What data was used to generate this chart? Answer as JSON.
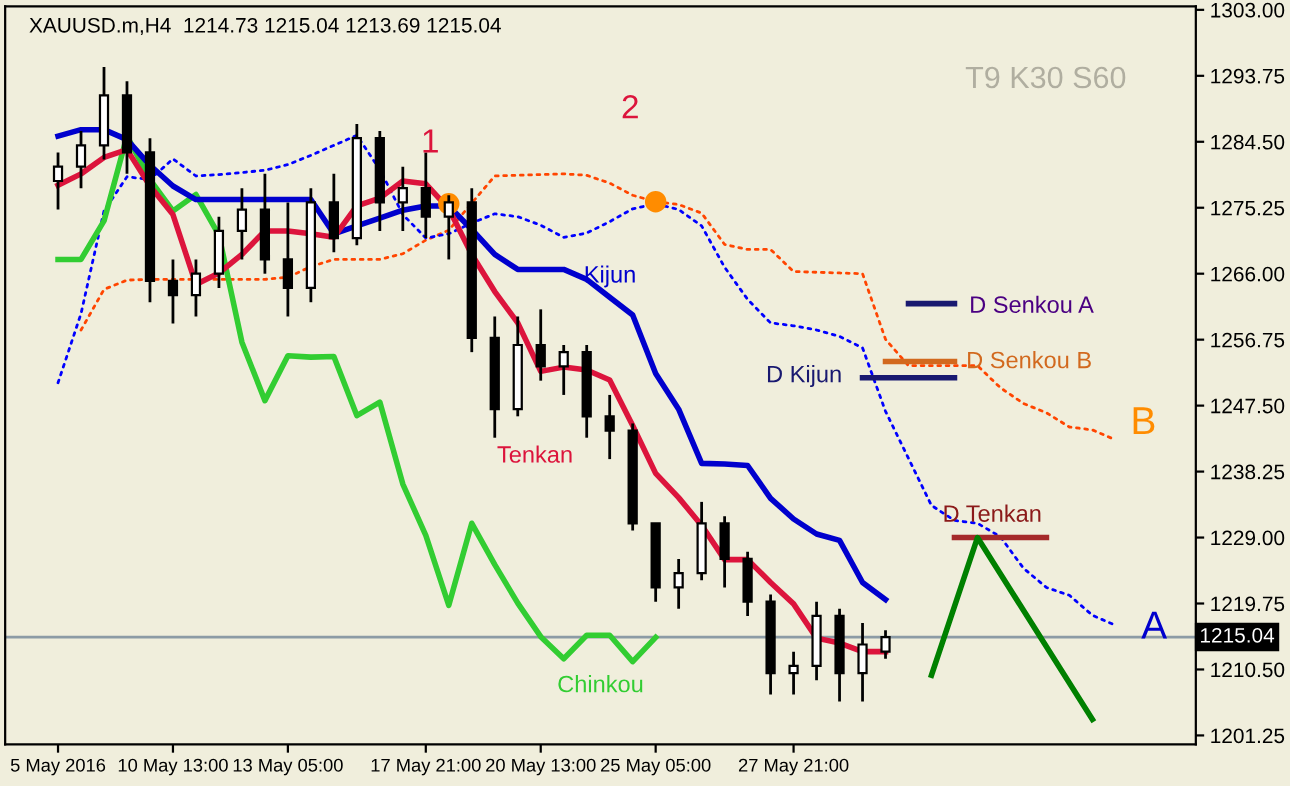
{
  "chart_data": {
    "type": "candlestick",
    "title": "XAUUSD.m,H4  1214.73 1215.04 1213.69 1215.04",
    "categories": [
      "5 May 2016",
      null,
      null,
      null,
      null,
      "10 May 13:00",
      null,
      null,
      null,
      null,
      "13 May 05:00",
      null,
      null,
      null,
      null,
      null,
      "17 May 21:00",
      null,
      null,
      null,
      null,
      "20 May 13:00",
      null,
      null,
      null,
      null,
      "25 May 05:00",
      null,
      null,
      null,
      null,
      null,
      "27 May 21:00",
      null,
      null,
      null,
      null,
      null,
      null,
      null,
      null,
      null,
      null,
      null,
      null,
      null,
      null,
      null,
      null,
      null
    ],
    "ohlc": [
      [
        1279,
        1283,
        1275,
        1281
      ],
      [
        1281,
        1286,
        1278,
        1284
      ],
      [
        1284,
        1295,
        1282,
        1291
      ],
      [
        1291,
        1293,
        1280,
        1283
      ],
      [
        1283,
        1285,
        1262,
        1265
      ],
      [
        1265,
        1268,
        1259,
        1263
      ],
      [
        1263,
        1268,
        1260,
        1266
      ],
      [
        1266,
        1274,
        1264,
        1272
      ],
      [
        1272,
        1278,
        1268,
        1275
      ],
      [
        1275,
        1280,
        1266,
        1268
      ],
      [
        1268,
        1276,
        1260,
        1264
      ],
      [
        1264,
        1278,
        1262,
        1276
      ],
      [
        1276,
        1280,
        1269,
        1271
      ],
      [
        1271,
        1287,
        1270,
        1285
      ],
      [
        1285,
        1286,
        1272,
        1276
      ],
      [
        1276,
        1281,
        1272,
        1278
      ],
      [
        1278,
        1283,
        1271,
        1274
      ],
      [
        1274,
        1277,
        1268,
        1276
      ],
      [
        1276,
        1278,
        1255,
        1257
      ],
      [
        1257,
        1260,
        1243,
        1247
      ],
      [
        1247,
        1260,
        1246,
        1256
      ],
      [
        1256,
        1261,
        1251,
        1253
      ],
      [
        1253,
        1256,
        1249,
        1255
      ],
      [
        1255,
        1256,
        1243,
        1246
      ],
      [
        1246,
        1249,
        1240,
        1244
      ],
      [
        1244,
        1245,
        1230,
        1231
      ],
      [
        1231,
        1231,
        1220,
        1222
      ],
      [
        1222,
        1226,
        1219,
        1224
      ],
      [
        1224,
        1234,
        1223,
        1231
      ],
      [
        1231,
        1232,
        1222,
        1226
      ],
      [
        1226,
        1227,
        1218,
        1220
      ],
      [
        1220,
        1221,
        1207,
        1210
      ],
      [
        1210,
        1213,
        1207,
        1211
      ],
      [
        1211,
        1220,
        1209,
        1218
      ],
      [
        1218,
        1219,
        1206,
        1210
      ],
      [
        1210,
        1217,
        1206,
        1214
      ],
      [
        1213,
        1216,
        1212,
        1215.04
      ],
      null,
      null,
      null,
      null,
      null,
      null,
      null,
      null,
      null,
      null,
      null,
      null,
      null
    ],
    "series": [
      {
        "type": "line",
        "color": "#0000ff",
        "line_style": "dotted",
        "values": [
          1250.7,
          1260.4,
          1274.8,
          1279.6,
          1279.2,
          1282.1,
          1279.7,
          1279.9,
          1280.2,
          1280.5,
          1281.3,
          1282.6,
          1284.0,
          1285.4,
          1280.6,
          1274.3,
          1271.0,
          1271.6,
          1273.1,
          1274.4,
          1274.0,
          1272.8,
          1271.1,
          1271.7,
          1273.3,
          1275.1,
          1275.8,
          1275.0,
          1272.7,
          1266.9,
          1262.4,
          1259.1,
          1258.7,
          1258.1,
          1257.2,
          1255.6,
          1246.7,
          1240.1,
          1233.5,
          1231.4,
          1231.0,
          1229.1,
          1224.7,
          1222.0,
          1220.9,
          1218.1,
          1216.7,
          null,
          null,
          null
        ]
      },
      {
        "type": "line",
        "color": "#ff4500",
        "line_style": "dotted",
        "values": [
          null,
          1258.1,
          1263.8,
          1265.1,
          1265.2,
          1265.2,
          1265.2,
          1265.2,
          1265.2,
          1265.2,
          1265.5,
          1267.0,
          1268.0,
          1268.0,
          1268.0,
          1268.8,
          1270.7,
          1272.1,
          null,
          1279.7,
          1279.8,
          1279.9,
          1280.0,
          1279.8,
          1278.7,
          1277.0,
          1276.1,
          1275.7,
          1274.5,
          1270.1,
          1269.4,
          1269.4,
          1266.3,
          1266.2,
          1266.1,
          1266.0,
          1256.8,
          1253.1,
          1253.1,
          1253.1,
          1253.1,
          1250.0,
          1247.8,
          1246.5,
          1244.5,
          1244.1,
          1242.7,
          null,
          null,
          null
        ]
      },
      {
        "type": "line",
        "color": "#32cd32",
        "values": [
          1268,
          1268,
          1273.4,
          1285.3,
          1279.2,
          1274.8,
          1277.1,
          1271.4,
          1256.4,
          1248.2,
          1254.5,
          1254.3,
          1254.4,
          1246.1,
          1248.0,
          1236.5,
          1229.3,
          1219.5,
          1231.0,
          1225.2,
          1219.8,
          1215.1,
          1212.0,
          1215.3,
          1215.3,
          1211.6,
          1215.0,
          null,
          null,
          null,
          null,
          null,
          null,
          null,
          null,
          null,
          null,
          null,
          null,
          null,
          null,
          null,
          null,
          null,
          null,
          null,
          null,
          null,
          null,
          null
        ]
      },
      {
        "type": "line",
        "color": "#0000cd",
        "values": [
          1285.3,
          1286.2,
          1286.2,
          1284.8,
          1281.2,
          1278.3,
          1276.4,
          1276.4,
          1276.4,
          1276.4,
          1276.4,
          1276.4,
          1271.6,
          1272.7,
          1273.8,
          1274.9,
          1275.5,
          1275.5,
          1272.2,
          1268.7,
          1266.6,
          1266.6,
          1266.6,
          1265.2,
          1262.7,
          1260.2,
          1252.0,
          1247.0,
          1239.4,
          1239.3,
          1239.1,
          1234.5,
          1231.6,
          1229.5,
          1228.6,
          1222.7,
          1220.3,
          null,
          null,
          null,
          null,
          null,
          null,
          null,
          null,
          null,
          null,
          null,
          null,
          null
        ]
      },
      {
        "type": "line",
        "color": "#dc143c",
        "values": [
          1278.4,
          1280.0,
          1282.3,
          1283.4,
          1278.3,
          1274.3,
          1264.5,
          1266.1,
          1268.7,
          1272.0,
          1272.0,
          1271.6,
          1271.1,
          1275.5,
          1276.6,
          1279.0,
          1278.6,
          1275.1,
          1268.7,
          1263.5,
          1259.1,
          1252.3,
          1252.9,
          1252.5,
          1251.1,
          1244.7,
          1238.0,
          1234.6,
          1230.7,
          1225.9,
          1225.9,
          1222.7,
          1219.7,
          1214.9,
          1214.2,
          1213.0,
          1213.0,
          null,
          null,
          null,
          null,
          null,
          null,
          null,
          null,
          null,
          null,
          null,
          null,
          null
        ]
      },
      {
        "type": "scatter",
        "color": "#ff8c00",
        "marker": "circle",
        "values": [
          null,
          null,
          null,
          null,
          null,
          null,
          null,
          null,
          null,
          null,
          null,
          null,
          null,
          null,
          null,
          null,
          null,
          1275.8,
          null,
          null,
          null,
          null,
          null,
          null,
          null,
          null,
          1276.1,
          null,
          null,
          null,
          null,
          null,
          null,
          null,
          null,
          null,
          null,
          null,
          null,
          null,
          null,
          null,
          null,
          null,
          null,
          null,
          null,
          null,
          null,
          null
        ]
      },
      {
        "type": "line",
        "color": "#191970",
        "values": [
          null,
          null,
          null,
          null,
          null,
          null,
          null,
          null,
          null,
          null,
          null,
          null,
          null,
          null,
          null,
          null,
          null,
          null,
          null,
          null,
          null,
          null,
          null,
          null,
          null,
          null,
          null,
          null,
          null,
          null,
          null,
          null,
          null,
          null,
          null,
          null,
          null,
          1261.8,
          1261.8,
          1261.8,
          null,
          null,
          null,
          null,
          null,
          null,
          null,
          null,
          null,
          null
        ]
      },
      {
        "type": "line",
        "color": "#d2691e",
        "values": [
          null,
          null,
          null,
          null,
          null,
          null,
          null,
          null,
          null,
          null,
          null,
          null,
          null,
          null,
          null,
          null,
          null,
          null,
          null,
          null,
          null,
          null,
          null,
          null,
          null,
          null,
          null,
          null,
          null,
          null,
          null,
          null,
          null,
          null,
          null,
          null,
          1253.7,
          1253.7,
          1253.7,
          1253.7,
          null,
          null,
          null,
          null,
          null,
          null,
          null,
          null,
          null,
          null
        ]
      },
      {
        "type": "line",
        "color": "#191970",
        "values": [
          null,
          null,
          null,
          null,
          null,
          null,
          null,
          null,
          null,
          null,
          null,
          null,
          null,
          null,
          null,
          null,
          null,
          null,
          null,
          null,
          null,
          null,
          null,
          null,
          null,
          null,
          null,
          null,
          null,
          null,
          null,
          null,
          null,
          null,
          null,
          1251.4,
          1251.4,
          1251.4,
          1251.4,
          1251.4,
          null,
          null,
          null,
          null,
          null,
          null,
          null,
          null,
          null,
          null
        ]
      },
      {
        "type": "line",
        "color": "#a52a2a",
        "values": [
          null,
          null,
          null,
          null,
          null,
          null,
          null,
          null,
          null,
          null,
          null,
          null,
          null,
          null,
          null,
          null,
          null,
          null,
          null,
          null,
          null,
          null,
          null,
          null,
          null,
          null,
          null,
          null,
          null,
          null,
          null,
          null,
          null,
          null,
          null,
          null,
          null,
          null,
          null,
          1229.0,
          1229.0,
          1229.0,
          1229.0,
          1229.0,
          null,
          null,
          null,
          null,
          null,
          null
        ]
      },
      {
        "type": "line",
        "color": "#008000",
        "values": [
          null,
          null,
          null,
          null,
          null,
          null,
          null,
          null,
          null,
          null,
          null,
          null,
          null,
          null,
          null,
          null,
          null,
          null,
          null,
          null,
          null,
          null,
          null,
          null,
          null,
          null,
          null,
          null,
          null,
          null,
          null,
          null,
          null,
          null,
          null,
          null,
          null,
          null,
          1209.7,
          null,
          1229.0,
          null,
          null,
          null,
          null,
          1203.5,
          null,
          null,
          null,
          null
        ]
      }
    ],
    "annotations": [
      "T9 K30 S60",
      {
        "text": "1",
        "y": 1275.8
      },
      {
        "text": "2",
        "y": 1276.1
      },
      "Kijun",
      "Tenkan",
      "Chinkou",
      "D Senkou A",
      "D Senkou B",
      "D Kijun",
      "D Tenkan",
      "A",
      "B"
    ],
    "ref_lines": [
      {
        "axis": "y",
        "value": 1215.04,
        "label": "1215.04",
        "color": "#8c9ba5"
      }
    ],
    "ylim": [
      1200,
      1303.5
    ],
    "yticks": [
      {
        "value": 1201.25,
        "label": "1201.25"
      },
      {
        "value": 1210.5,
        "label": "1210.50"
      },
      {
        "value": 1219.75,
        "label": "1219.75"
      },
      {
        "value": 1229,
        "label": "1229.00"
      },
      {
        "value": 1238.25,
        "label": "1238.25"
      },
      {
        "value": 1247.5,
        "label": "1247.50"
      },
      {
        "value": 1256.75,
        "label": "1256.75"
      },
      {
        "value": 1266,
        "label": "1266.00"
      },
      {
        "value": 1275.25,
        "label": "1275.25"
      },
      {
        "value": 1284.5,
        "label": "1284.50"
      },
      {
        "value": 1293.75,
        "label": "1293.75"
      },
      {
        "value": 1303,
        "label": "1303.00"
      }
    ],
    "grid": false,
    "legend": false
  }
}
